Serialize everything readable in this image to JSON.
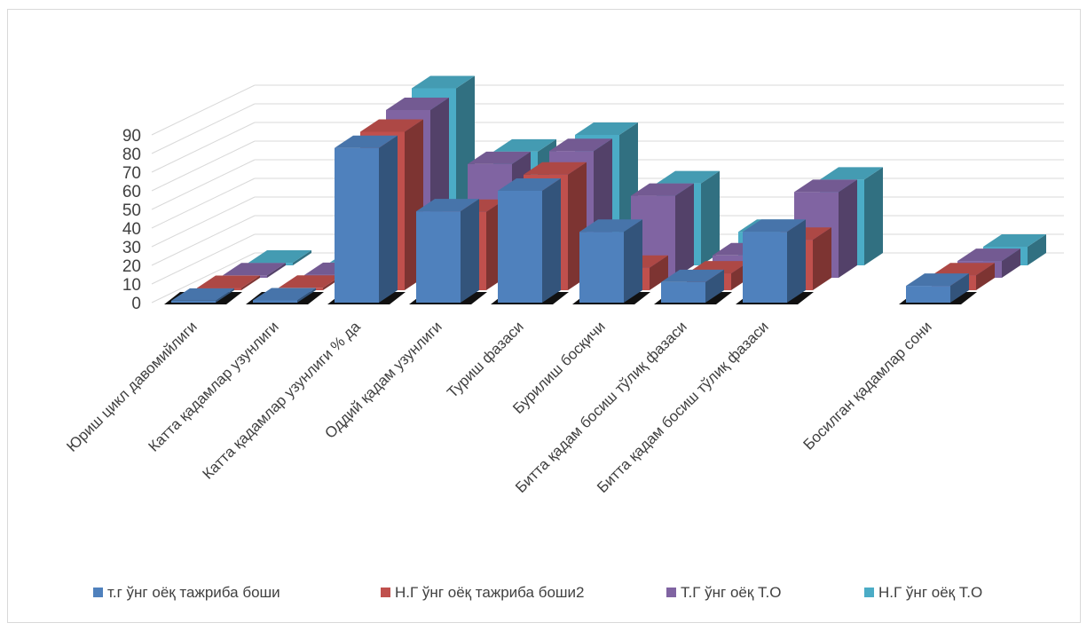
{
  "chart_data": {
    "type": "bar",
    "style": "3d-clustered-column",
    "title": "",
    "xlabel": "",
    "ylabel": "",
    "ylim": [
      0,
      90
    ],
    "yticks": [
      0,
      10,
      20,
      30,
      40,
      50,
      60,
      70,
      80,
      90
    ],
    "grid": true,
    "legend_position": "bottom",
    "categories": [
      "Юриш цикл давомийлиги",
      "Катта қадамлар узунлиги",
      "Катта қадамлар узунлиги % да",
      "Оддий қадам узунлиги",
      "Туриш фазаси",
      "Бурилиш босқичи",
      "Битта қадам босиш тўлиқ фазаси",
      "Битта қадам босиш тўлиқ фазаси",
      "",
      "Босилган қадамлар сони"
    ],
    "series": [
      {
        "name": "т.г ўнг оёқ тажриба боши",
        "color": "#4f81bd",
        "values": [
          1,
          1.2,
          83,
          49,
          60,
          38,
          11,
          38,
          0,
          9
        ]
      },
      {
        "name": "Н.Г ўнг оёқ тажриба боши2",
        "color": "#c0504d",
        "values": [
          1.2,
          1.3,
          85,
          42,
          62,
          12,
          9,
          27,
          0,
          8
        ]
      },
      {
        "name": "Т.Г ўнг оёқ Т.О",
        "color": "#8064a2",
        "values": [
          1.3,
          1.5,
          90,
          61,
          68,
          44,
          12,
          46,
          0,
          9
        ]
      },
      {
        "name": "Н.Г ўнг оёқ Т.О",
        "color": "#4bacc6",
        "values": [
          1.4,
          1.6,
          95,
          61,
          70,
          44,
          18,
          46,
          0,
          10
        ]
      }
    ]
  }
}
